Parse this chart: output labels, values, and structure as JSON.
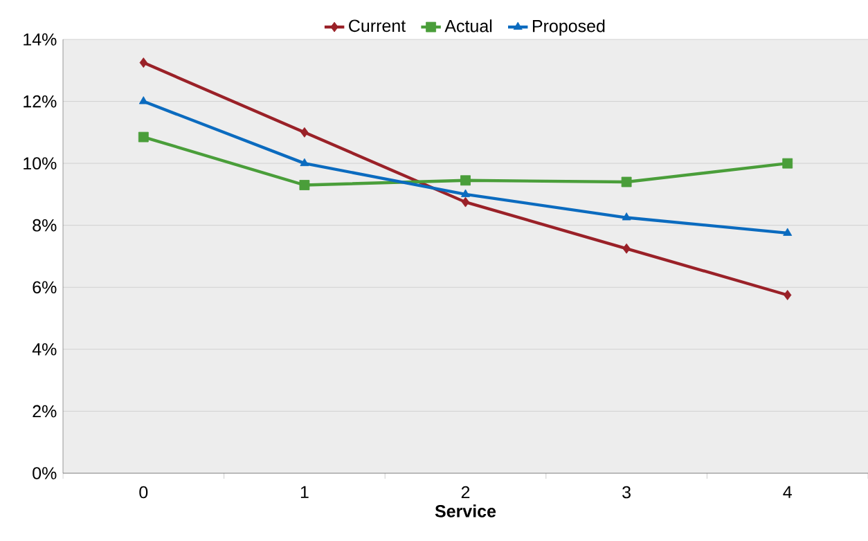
{
  "chart_data": {
    "type": "line",
    "xlabel": "Service",
    "categories": [
      "0",
      "1",
      "2",
      "3",
      "4"
    ],
    "series": [
      {
        "name": "Current",
        "color": "#9a2128",
        "marker": "diamond",
        "values": [
          13.25,
          11.0,
          8.75,
          7.25,
          5.75
        ]
      },
      {
        "name": "Actual",
        "color": "#4a9e3a",
        "marker": "square",
        "values": [
          10.85,
          9.3,
          9.45,
          9.4,
          10.0
        ]
      },
      {
        "name": "Proposed",
        "color": "#0b6bbf",
        "marker": "triangle",
        "values": [
          12.0,
          10.0,
          9.0,
          8.25,
          7.75
        ]
      }
    ],
    "ylim": [
      0,
      14
    ],
    "yticks": [
      {
        "value": 0,
        "label": "0%"
      },
      {
        "value": 2,
        "label": "2%"
      },
      {
        "value": 4,
        "label": "4%"
      },
      {
        "value": 6,
        "label": "6%"
      },
      {
        "value": 8,
        "label": "8%"
      },
      {
        "value": 10,
        "label": "10%"
      },
      {
        "value": 12,
        "label": "12%"
      },
      {
        "value": 14,
        "label": "14%"
      }
    ],
    "grid": "y",
    "legend": "top"
  }
}
